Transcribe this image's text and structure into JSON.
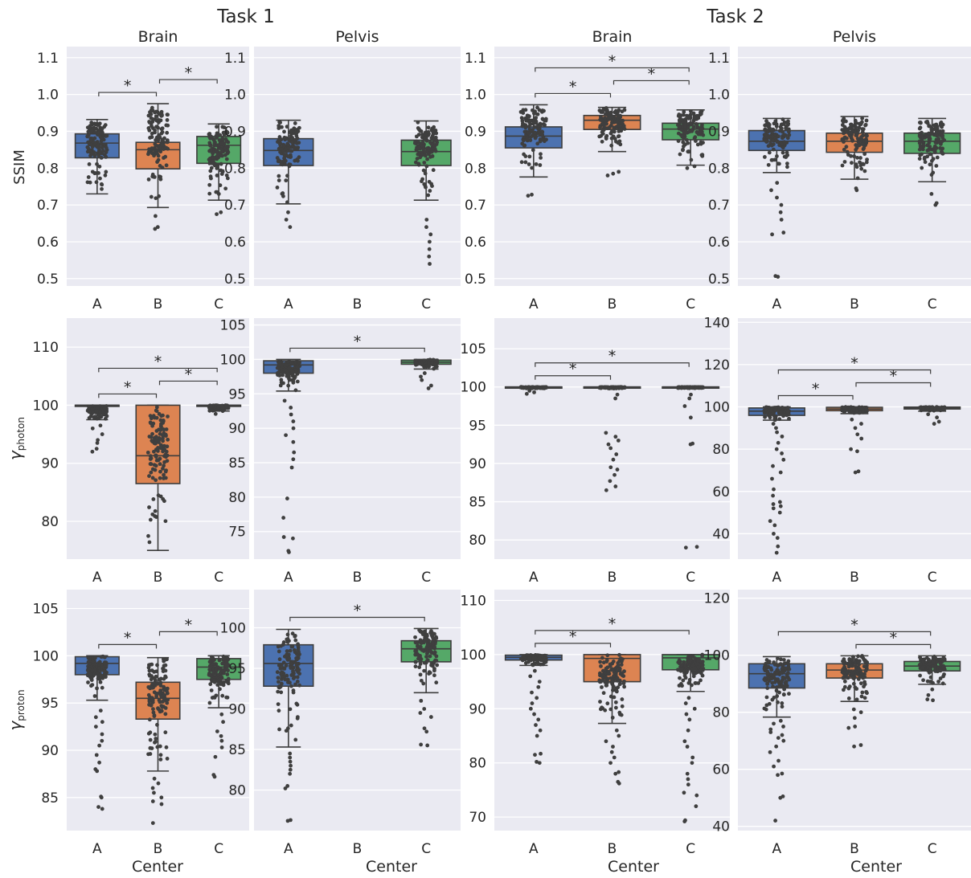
{
  "figure": {
    "task_titles": [
      "Task 1",
      "Task 2"
    ],
    "xlabel": "Center",
    "ylabels": {
      "ssim": "SSIM",
      "photon_symbol": "γ",
      "photon_sub": "photon",
      "proton_symbol": "γ",
      "proton_sub": "proton"
    },
    "colors": {
      "A": "#4c72b0",
      "B": "#dd8452",
      "C": "#55a868",
      "panel_bg": "#eaeaf2",
      "grid": "#ffffff",
      "points": "#3f3f3f",
      "text": "#262626"
    }
  },
  "chart_data": [
    {
      "type": "box",
      "task": "Task 1",
      "title": "Brain",
      "row": "SSIM",
      "ylim": [
        0.48,
        1.13
      ],
      "yticks": [
        "0.5",
        "0.6",
        "0.7",
        "0.8",
        "0.9",
        "1.0",
        "1.1"
      ],
      "categories": [
        "A",
        "B",
        "C"
      ],
      "boxes": [
        {
          "center": "A",
          "whisker_low": 0.73,
          "q1": 0.828,
          "median": 0.868,
          "q3": 0.893,
          "whisker_high": 0.932,
          "outliers": []
        },
        {
          "center": "B",
          "whisker_low": 0.693,
          "q1": 0.798,
          "median": 0.85,
          "q3": 0.87,
          "whisker_high": 0.975,
          "outliers": [
            0.635,
            0.64,
            0.67
          ]
        },
        {
          "center": "C",
          "whisker_low": 0.713,
          "q1": 0.813,
          "median": 0.862,
          "q3": 0.886,
          "whisker_high": 0.92,
          "outliers": [
            0.675,
            0.68
          ]
        }
      ],
      "significance": [
        {
          "from": "A",
          "to": "B",
          "label": "*"
        },
        {
          "from": "B",
          "to": "C",
          "label": "*"
        }
      ]
    },
    {
      "type": "box",
      "task": "Task 1",
      "title": "Pelvis",
      "row": "SSIM",
      "ylim": [
        0.48,
        1.13
      ],
      "yticks": [
        "0.5",
        "0.6",
        "0.7",
        "0.8",
        "0.9",
        "1.0",
        "1.1"
      ],
      "categories": [
        "A",
        "B",
        "C"
      ],
      "boxes": [
        {
          "center": "A",
          "whisker_low": 0.703,
          "q1": 0.807,
          "median": 0.848,
          "q3": 0.88,
          "whisker_high": 0.93,
          "outliers": [
            0.64,
            0.66,
            0.68
          ]
        },
        null,
        {
          "center": "C",
          "whisker_low": 0.713,
          "q1": 0.807,
          "median": 0.845,
          "q3": 0.876,
          "whisker_high": 0.928,
          "outliers": [
            0.54,
            0.56,
            0.58,
            0.6,
            0.62,
            0.64,
            0.66
          ]
        }
      ],
      "significance": []
    },
    {
      "type": "box",
      "task": "Task 2",
      "title": "Brain",
      "row": "SSIM",
      "ylim": [
        0.48,
        1.13
      ],
      "yticks": [
        "0.5",
        "0.6",
        "0.7",
        "0.8",
        "0.9",
        "1.0",
        "1.1"
      ],
      "categories": [
        "A",
        "B",
        "C"
      ],
      "boxes": [
        {
          "center": "A",
          "whisker_low": 0.776,
          "q1": 0.855,
          "median": 0.887,
          "q3": 0.912,
          "whisker_high": 0.972,
          "outliers": [
            0.725,
            0.728
          ]
        },
        {
          "center": "B",
          "whisker_low": 0.845,
          "q1": 0.905,
          "median": 0.93,
          "q3": 0.943,
          "whisker_high": 0.965,
          "outliers": [
            0.78,
            0.785,
            0.79
          ]
        },
        {
          "center": "C",
          "whisker_low": 0.808,
          "q1": 0.877,
          "median": 0.906,
          "q3": 0.922,
          "whisker_high": 0.958,
          "outliers": [
            0.8,
            0.805
          ]
        }
      ],
      "significance": [
        {
          "from": "A",
          "to": "B",
          "label": "*"
        },
        {
          "from": "B",
          "to": "C",
          "label": "*"
        },
        {
          "from": "A",
          "to": "C",
          "label": "*"
        }
      ]
    },
    {
      "type": "box",
      "task": "Task 2",
      "title": "Pelvis",
      "row": "SSIM",
      "ylim": [
        0.48,
        1.13
      ],
      "yticks": [
        "0.5",
        "0.6",
        "0.7",
        "0.8",
        "0.9",
        "1.0",
        "1.1"
      ],
      "categories": [
        "A",
        "B",
        "C"
      ],
      "boxes": [
        {
          "center": "A",
          "whisker_low": 0.788,
          "q1": 0.848,
          "median": 0.873,
          "q3": 0.902,
          "whisker_high": 0.935,
          "outliers": [
            0.505,
            0.507,
            0.62,
            0.625,
            0.66,
            0.68,
            0.7,
            0.72,
            0.74,
            0.76
          ]
        },
        {
          "center": "B",
          "whisker_low": 0.77,
          "q1": 0.843,
          "median": 0.873,
          "q3": 0.895,
          "whisker_high": 0.94,
          "outliers": [
            0.74,
            0.745
          ]
        },
        {
          "center": "C",
          "whisker_low": 0.763,
          "q1": 0.84,
          "median": 0.873,
          "q3": 0.895,
          "whisker_high": 0.935,
          "outliers": [
            0.7,
            0.705,
            0.73
          ]
        }
      ],
      "significance": []
    },
    {
      "type": "box",
      "task": "Task 1",
      "title": "",
      "row": "gamma_photon",
      "ylim": [
        73.5,
        115
      ],
      "yticks": [
        "80",
        "90",
        "100",
        "110"
      ],
      "categories": [
        "A",
        "B",
        "C"
      ],
      "boxes": [
        {
          "center": "A",
          "whisker_low": 97.5,
          "q1": 99.8,
          "median": 100.0,
          "q3": 100.0,
          "whisker_high": 100.0,
          "outliers": [
            92,
            92.5,
            93.5,
            94,
            95,
            96,
            96.5
          ]
        },
        {
          "center": "B",
          "whisker_low": 75.0,
          "q1": 86.5,
          "median": 91.3,
          "q3": 100.0,
          "whisker_high": 100.0,
          "outliers": []
        },
        {
          "center": "C",
          "whisker_low": 99.0,
          "q1": 99.8,
          "median": 100.0,
          "q3": 100.0,
          "whisker_high": 100.0,
          "outliers": [
            98.5,
            99
          ]
        }
      ],
      "significance": [
        {
          "from": "A",
          "to": "B",
          "label": "*"
        },
        {
          "from": "B",
          "to": "C",
          "label": "*"
        },
        {
          "from": "A",
          "to": "C",
          "label": "*"
        }
      ]
    },
    {
      "type": "box",
      "task": "Task 1",
      "title": "",
      "row": "gamma_photon",
      "ylim": [
        71,
        106
      ],
      "yticks": [
        "75",
        "80",
        "85",
        "90",
        "95",
        "100",
        "105"
      ],
      "categories": [
        "A",
        "B",
        "C"
      ],
      "boxes": [
        {
          "center": "A",
          "whisker_low": 95.4,
          "q1": 98.0,
          "median": 99.2,
          "q3": 99.8,
          "whisker_high": 100.0,
          "outliers": [
            72,
            72.2,
            74,
            74.2,
            77,
            79.8,
            84.3,
            85.5,
            86.5,
            88,
            89,
            90,
            91,
            92,
            93,
            94
          ]
        },
        null,
        {
          "center": "C",
          "whisker_low": 98.6,
          "q1": 99.3,
          "median": 99.6,
          "q3": 99.9,
          "whisker_high": 100.0,
          "outliers": [
            95.8,
            96.2,
            97,
            97.5,
            98
          ]
        }
      ],
      "significance": [
        {
          "from": "A",
          "to": "C",
          "label": "*"
        }
      ]
    },
    {
      "type": "box",
      "task": "Task 2",
      "title": "",
      "row": "gamma_photon",
      "ylim": [
        77.5,
        109
      ],
      "yticks": [
        "80",
        "85",
        "90",
        "95",
        "100",
        "105"
      ],
      "categories": [
        "A",
        "B",
        "C"
      ],
      "boxes": [
        {
          "center": "A",
          "whisker_low": 99.8,
          "q1": 99.95,
          "median": 100.0,
          "q3": 100.0,
          "whisker_high": 100.0,
          "outliers": [
            99.1,
            99.3,
            99.5
          ]
        },
        {
          "center": "B",
          "whisker_low": 99.8,
          "q1": 99.95,
          "median": 100.0,
          "q3": 100.0,
          "whisker_high": 100.0,
          "outliers": [
            86.5,
            87,
            87.7,
            88.5,
            89.2,
            89.5,
            90.5,
            91.2,
            92,
            92.5,
            93,
            93.5,
            94,
            98.5,
            99
          ]
        },
        {
          "center": "C",
          "whisker_low": 99.8,
          "q1": 99.9,
          "median": 100.0,
          "q3": 100.0,
          "whisker_high": 100.0,
          "outliers": [
            79,
            79.1,
            92.5,
            92.6,
            96,
            97.5,
            98.5,
            99
          ]
        }
      ],
      "significance": [
        {
          "from": "A",
          "to": "B",
          "label": "*"
        },
        {
          "from": "A",
          "to": "C",
          "label": "*"
        }
      ]
    },
    {
      "type": "box",
      "task": "Task 2",
      "title": "",
      "row": "gamma_photon",
      "ylim": [
        28,
        142
      ],
      "yticks": [
        "40",
        "60",
        "80",
        "100",
        "120",
        "140"
      ],
      "categories": [
        "A",
        "B",
        "C"
      ],
      "boxes": [
        {
          "center": "A",
          "whisker_low": 93.7,
          "q1": 96.0,
          "median": 98.0,
          "q3": 99.5,
          "whisker_high": 100.0,
          "outliers": [
            31,
            34,
            38,
            40,
            44,
            46,
            50,
            52,
            53,
            54,
            55,
            58,
            61,
            66,
            69,
            72,
            75,
            78,
            80,
            83,
            86,
            88,
            90,
            92
          ]
        },
        {
          "center": "B",
          "whisker_low": 96.8,
          "q1": 98.2,
          "median": 99.0,
          "q3": 99.8,
          "whisker_high": 100.0,
          "outliers": [
            69,
            69.5,
            79,
            80,
            85,
            87,
            90,
            92,
            94
          ]
        },
        {
          "center": "C",
          "whisker_low": 98.0,
          "q1": 99.0,
          "median": 99.5,
          "q3": 99.9,
          "whisker_high": 100.0,
          "outliers": [
            92,
            93,
            95,
            96.5
          ]
        }
      ],
      "significance": [
        {
          "from": "A",
          "to": "B",
          "label": "*"
        },
        {
          "from": "B",
          "to": "C",
          "label": "*"
        },
        {
          "from": "A",
          "to": "C",
          "label": "*"
        }
      ]
    },
    {
      "type": "box",
      "task": "Task 1",
      "title": "",
      "row": "gamma_proton",
      "ylim": [
        81.5,
        107
      ],
      "yticks": [
        "85",
        "90",
        "95",
        "100",
        "105"
      ],
      "categories": [
        "A",
        "B",
        "C"
      ],
      "boxes": [
        {
          "center": "A",
          "whisker_low": 95.3,
          "q1": 98.0,
          "median": 99.2,
          "q3": 99.9,
          "whisker_high": 100.0,
          "outliers": [
            83.8,
            84,
            85,
            85.1,
            87.8,
            88,
            88.7,
            89.5,
            90.5,
            91,
            91.7,
            92.5,
            93,
            93.5,
            94.2
          ]
        },
        {
          "center": "B",
          "whisker_low": 87.8,
          "q1": 93.3,
          "median": 95.5,
          "q3": 97.2,
          "whisker_high": 99.8,
          "outliers": [
            82.3,
            84.3,
            84.6,
            85,
            85.5,
            86,
            86.5,
            87
          ]
        },
        {
          "center": "C",
          "whisker_low": 94.5,
          "q1": 97.5,
          "median": 98.8,
          "q3": 99.7,
          "whisker_high": 100.0,
          "outliers": [
            87.2,
            87.4,
            89.3,
            90.3,
            91,
            91.5,
            92,
            93,
            93.8
          ]
        }
      ],
      "significance": [
        {
          "from": "A",
          "to": "B",
          "label": "*"
        },
        {
          "from": "B",
          "to": "C",
          "label": "*"
        }
      ]
    },
    {
      "type": "box",
      "task": "Task 1",
      "title": "",
      "row": "gamma_proton",
      "ylim": [
        75,
        104.7
      ],
      "yticks": [
        "80",
        "85",
        "90",
        "95",
        "100"
      ],
      "categories": [
        "A",
        "B",
        "C"
      ],
      "boxes": [
        {
          "center": "A",
          "whisker_low": 85.3,
          "q1": 92.8,
          "median": 95.6,
          "q3": 97.9,
          "whisker_high": 99.8,
          "outliers": [
            76.2,
            76.3,
            80.2,
            80.5,
            82,
            82.5,
            83,
            83.5,
            84,
            84.5
          ]
        },
        null,
        {
          "center": "C",
          "whisker_low": 92.0,
          "q1": 95.8,
          "median": 97.4,
          "q3": 98.4,
          "whisker_high": 99.9,
          "outliers": [
            85.5,
            85.6,
            87.2,
            87.6,
            89,
            89.5,
            90,
            91
          ]
        }
      ],
      "significance": [
        {
          "from": "A",
          "to": "C",
          "label": "*"
        }
      ]
    },
    {
      "type": "box",
      "task": "Task 2",
      "title": "",
      "row": "gamma_proton",
      "ylim": [
        67.5,
        112
      ],
      "yticks": [
        "70",
        "80",
        "90",
        "100",
        "110"
      ],
      "categories": [
        "A",
        "B",
        "C"
      ],
      "boxes": [
        {
          "center": "A",
          "whisker_low": 98.0,
          "q1": 99.0,
          "median": 99.5,
          "q3": 99.9,
          "whisker_high": 100.0,
          "outliers": [
            80,
            80.2,
            81.5,
            81.7,
            85,
            86,
            87,
            88,
            89,
            90,
            91,
            92,
            93,
            94,
            95,
            96,
            97
          ]
        },
        {
          "center": "B",
          "whisker_low": 87.3,
          "q1": 95.0,
          "median": 99.3,
          "q3": 100.0,
          "whisker_high": 100.0,
          "outliers": [
            76.2,
            76.5,
            78,
            78.3,
            80,
            81,
            82,
            83,
            84,
            85,
            86
          ]
        },
        {
          "center": "C",
          "whisker_low": 93.2,
          "q1": 97.2,
          "median": 99.4,
          "q3": 100.0,
          "whisker_high": 100.0,
          "outliers": [
            69.2,
            69.4,
            72,
            74,
            74.5,
            76,
            77,
            78,
            80,
            81,
            83,
            84,
            86,
            88,
            89,
            90,
            91,
            92
          ]
        }
      ],
      "significance": [
        {
          "from": "A",
          "to": "B",
          "label": "*"
        },
        {
          "from": "A",
          "to": "C",
          "label": "*"
        }
      ]
    },
    {
      "type": "box",
      "task": "Task 2",
      "title": "",
      "row": "gamma_proton",
      "ylim": [
        38.5,
        123
      ],
      "yticks": [
        "40",
        "60",
        "80",
        "100",
        "120"
      ],
      "categories": [
        "A",
        "B",
        "C"
      ],
      "boxes": [
        {
          "center": "A",
          "whisker_low": 78.3,
          "q1": 88.5,
          "median": 93.5,
          "q3": 97.0,
          "whisker_high": 99.5,
          "outliers": [
            42,
            50,
            50.5,
            58,
            58.5,
            61,
            63,
            66,
            68,
            70,
            71,
            72,
            73,
            74,
            75,
            76,
            77
          ]
        },
        {
          "center": "B",
          "whisker_low": 83.8,
          "q1": 92.0,
          "median": 94.8,
          "q3": 97.0,
          "whisker_high": 99.8,
          "outliers": [
            68,
            68.5,
            74.5,
            75,
            78,
            80,
            81
          ]
        },
        {
          "center": "C",
          "whisker_low": 89.8,
          "q1": 94.5,
          "median": 96.2,
          "q3": 97.8,
          "whisker_high": 99.8,
          "outliers": [
            84.2,
            84.5,
            86,
            88
          ]
        }
      ],
      "significance": [
        {
          "from": "B",
          "to": "C",
          "label": "*"
        },
        {
          "from": "A",
          "to": "C",
          "label": "*"
        }
      ]
    }
  ]
}
